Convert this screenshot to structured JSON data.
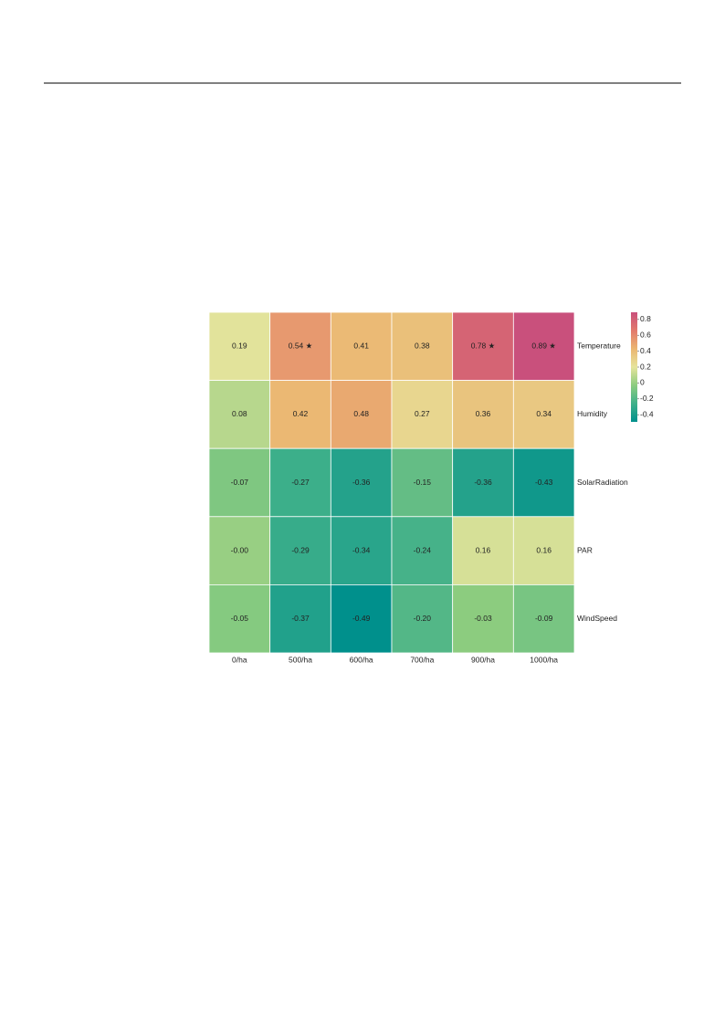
{
  "chart_data": {
    "type": "heatmap",
    "x_categories": [
      "0/ha",
      "500/ha",
      "600/ha",
      "700/ha",
      "900/ha",
      "1000/ha"
    ],
    "y_categories": [
      "Temperature",
      "Humidity",
      "SolarRadiation",
      "PAR",
      "WindSpeed"
    ],
    "values": [
      [
        0.19,
        0.54,
        0.41,
        0.38,
        0.78,
        0.89
      ],
      [
        0.08,
        0.42,
        0.48,
        0.27,
        0.36,
        0.34
      ],
      [
        -0.07,
        -0.27,
        -0.36,
        -0.15,
        -0.36,
        -0.43
      ],
      [
        0,
        -0.29,
        -0.34,
        -0.24,
        0.16,
        0.16
      ],
      [
        -0.05,
        -0.37,
        -0.49,
        -0.2,
        -0.03,
        -0.09
      ]
    ],
    "value_labels": [
      [
        "0.19",
        "0.54 ★",
        "0.41",
        "0.38",
        "0.78 ★",
        "0.89 ★"
      ],
      [
        "0.08",
        "0.42",
        "0.48",
        "0.27",
        "0.36",
        "0.34"
      ],
      [
        "-0.07",
        "-0.27",
        "-0.36",
        "-0.15",
        "-0.36",
        "-0.43"
      ],
      [
        "-0.00",
        "-0.29",
        "-0.34",
        "-0.24",
        "0.16",
        "0.16"
      ],
      [
        "-0.05",
        "-0.37",
        "-0.49",
        "-0.20",
        "-0.03",
        "-0.09"
      ]
    ],
    "clim": [
      -0.49,
      0.89
    ],
    "cticks": [
      0.8,
      0.6,
      0.4,
      0.2,
      0,
      -0.2,
      -0.4
    ],
    "colorscale": [
      "#00908c",
      "#3fb08a",
      "#8ccc7f",
      "#e6e49c",
      "#ebb671",
      "#e27a6c",
      "#c9507c"
    ]
  }
}
